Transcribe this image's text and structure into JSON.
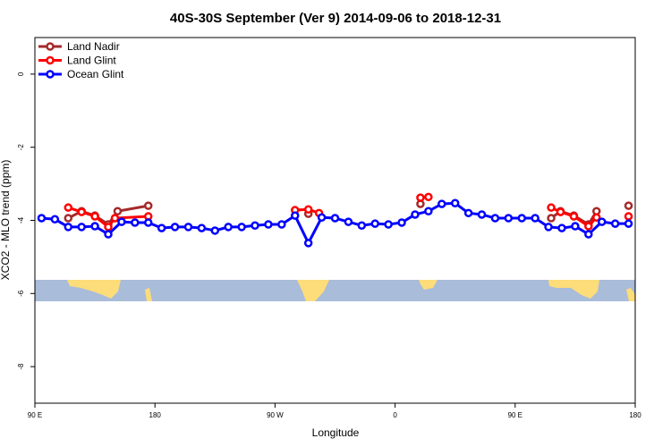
{
  "chart_data": {
    "type": "line",
    "title": "40S-30S September (Ver 9)   2014-09-06 to 2018-12-31",
    "x_label": "Longitude",
    "y_label": "XCO2 - MLO trend (ppm)",
    "xlim": [
      90,
      540
    ],
    "xticks": [
      {
        "value": 90,
        "label": "90 E"
      },
      180,
      {
        "value": 270,
        "label": "90 W"
      },
      {
        "value": 360,
        "label": "0"
      },
      {
        "value": 450,
        "label": "90 E"
      },
      {
        "value": 540,
        "label": "180"
      }
    ],
    "ylim": [
      -9,
      1
    ],
    "yticks": [
      -8,
      -6,
      -4,
      -2,
      0
    ],
    "legend": "top-left",
    "series": [
      {
        "name": "Land Nadir",
        "color": "#a52a2a",
        "x": [
          115,
          125,
          135,
          145,
          152,
          175,
          null,
          295,
          null,
          379,
          null,
          477,
          484,
          494,
          505,
          511,
          null,
          535
        ],
        "values": [
          -3.94,
          -3.75,
          -3.87,
          -4.11,
          -3.75,
          -3.6,
          null,
          -3.82,
          null,
          -3.55,
          null,
          -3.94,
          -3.75,
          -3.87,
          -4.11,
          -3.75,
          null,
          -3.6
        ]
      },
      {
        "name": "Land Glint",
        "color": "#ff0000",
        "x": [
          115,
          125,
          135,
          145,
          150,
          175,
          null,
          285,
          295,
          303,
          null,
          379,
          385,
          null,
          477,
          484,
          494,
          505,
          511,
          null,
          535
        ],
        "values": [
          -3.65,
          -3.77,
          -3.89,
          -4.18,
          -3.94,
          -3.89,
          null,
          -3.72,
          -3.7,
          -3.8,
          null,
          -3.38,
          -3.36,
          null,
          -3.65,
          -3.77,
          -3.89,
          -4.16,
          -3.92,
          null,
          -3.89
        ]
      },
      {
        "name": "Ocean Glint",
        "color": "#0000ff",
        "x": [
          95,
          105,
          115,
          125,
          135,
          145,
          155,
          165,
          175,
          185,
          195,
          205,
          215,
          225,
          235,
          245,
          255,
          265,
          275,
          285,
          295,
          305,
          315,
          325,
          335,
          345,
          355,
          365,
          375,
          385,
          395,
          405,
          415,
          425,
          435,
          445,
          455,
          465,
          475,
          485,
          495,
          505,
          515,
          525,
          535
        ],
        "values": [
          -3.94,
          -3.97,
          -4.18,
          -4.18,
          -4.16,
          -4.38,
          -4.04,
          -4.06,
          -4.06,
          -4.21,
          -4.18,
          -4.18,
          -4.21,
          -4.28,
          -4.18,
          -4.18,
          -4.14,
          -4.11,
          -4.11,
          -3.87,
          -4.62,
          -3.92,
          -3.94,
          -4.04,
          -4.14,
          -4.09,
          -4.11,
          -4.06,
          -3.84,
          -3.75,
          -3.55,
          -3.53,
          -3.8,
          -3.84,
          -3.94,
          -3.94,
          -3.94,
          -3.94,
          -4.18,
          -4.21,
          -4.16,
          -4.38,
          -4.04,
          -4.09,
          -4.09
        ]
      }
    ]
  }
}
